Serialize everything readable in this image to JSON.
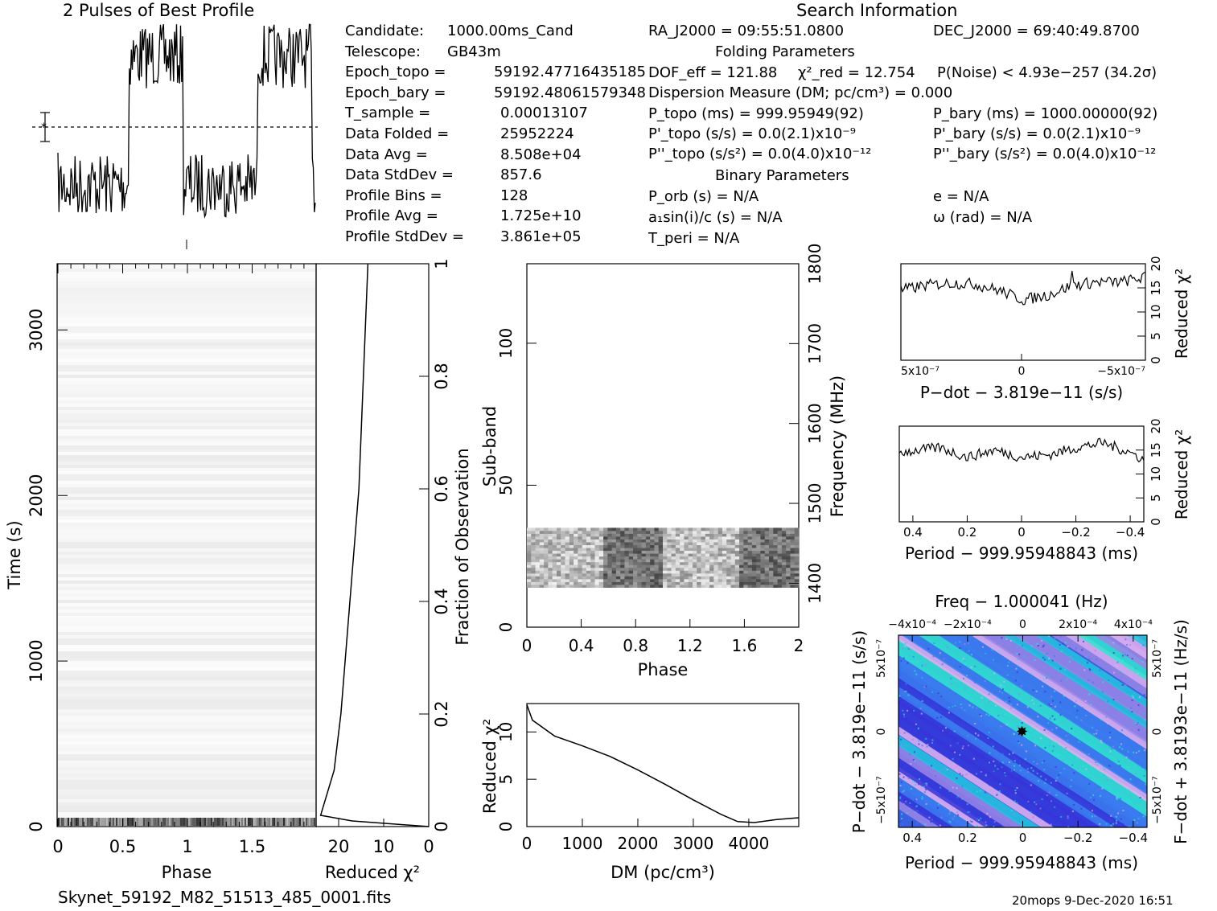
{
  "header": {
    "profile_title": "2 Pulses of Best Profile",
    "search_title": "Search Information",
    "folding_title": "Folding Parameters",
    "binary_title": "Binary Parameters"
  },
  "candidate_info": [
    {
      "label": "Candidate:",
      "value": "1000.00ms_Cand"
    },
    {
      "label": "Telescope:",
      "value": "GB43m"
    },
    {
      "label": "Epoch_topo =",
      "value": "59192.47716435185"
    },
    {
      "label": "Epoch_bary =",
      "value": "59192.48061579348"
    },
    {
      "label": "T_sample =",
      "value": "0.00013107"
    },
    {
      "label": "Data Folded =",
      "value": "25952224"
    },
    {
      "label": "Data Avg =",
      "value": "8.508e+04"
    },
    {
      "label": "Data StdDev =",
      "value": "857.6"
    },
    {
      "label": "Profile Bins =",
      "value": "128"
    },
    {
      "label": "Profile Avg =",
      "value": "1.725e+10"
    },
    {
      "label": "Profile StdDev =",
      "value": "3.861e+05"
    }
  ],
  "search_info": {
    "ra": "RA_J2000 = 09:55:51.0800",
    "dec": "DEC_J2000 = 69:40:49.8700",
    "dof": "DOF_eff = 121.88",
    "chi2": "χ²_red = 12.754",
    "pnoise": "P(Noise) < 4.93e−257   (34.2σ)",
    "dm": "Dispersion Measure (DM; pc/cm³) = 0.000",
    "ptopo": "P_topo (ms) =  999.95949(92)",
    "pbary": "P_bary (ms) =  1000.00000(92)",
    "pdtopo": "P'_topo (s/s) = 0.0(2.1)x10⁻⁹",
    "pdbary": "P'_bary (s/s) = 0.0(2.1)x10⁻⁹",
    "pddtopo": "P''_topo (s/s²) = 0.0(4.0)x10⁻¹²",
    "pddbary": "P''_bary (s/s²) = 0.0(4.0)x10⁻¹²",
    "porb": "P_orb (s) = N/A",
    "e": "e = N/A",
    "a1": "a₁sin(i)/c (s) = N/A",
    "omega": "ω (rad) = N/A",
    "tperi": "T_peri = N/A"
  },
  "footer": {
    "filename": "Skynet_59192_M82_51513_485_0001.fits",
    "stamp": "20mops  9-Dec-2020 16:51"
  },
  "chart_data": [
    {
      "id": "profile",
      "type": "line",
      "title": "2 Pulses of Best Profile",
      "x_range": [
        0,
        2
      ],
      "notes": "high from phase ~0.55-0.97 and ~1.55-1.97, low elsewhere",
      "levels": {
        "low": 0.28,
        "high": 0.78
      }
    },
    {
      "id": "time_phase",
      "type": "heatmap",
      "xlabel": "Phase",
      "ylabel": "Time (s)",
      "xlim": [
        0,
        2
      ],
      "ylim": [
        0,
        3400
      ],
      "xticks": [
        "0",
        "0.5",
        "1",
        "1.5"
      ],
      "yticks": [
        "0",
        "1000",
        "2000",
        "3000"
      ]
    },
    {
      "id": "time_chi2",
      "type": "line",
      "xlabel": "Reduced χ²",
      "ylabel": "Fraction of Observation",
      "xlim": [
        25,
        0
      ],
      "ylim": [
        0,
        1
      ],
      "xticks": [
        "20",
        "10",
        "0"
      ],
      "yticks": [
        "0",
        "0.2",
        "0.4",
        "0.6",
        "0.8",
        "1"
      ],
      "points": [
        [
          0,
          0
        ],
        [
          17,
          0.01
        ],
        [
          24,
          0.02
        ],
        [
          21,
          0.1
        ],
        [
          19.5,
          0.2
        ],
        [
          18.5,
          0.3
        ],
        [
          17.5,
          0.4
        ],
        [
          16.5,
          0.5
        ],
        [
          15.5,
          0.6
        ],
        [
          15,
          0.7
        ],
        [
          14.5,
          0.8
        ],
        [
          14,
          0.9
        ],
        [
          13.5,
          1.0
        ]
      ]
    },
    {
      "id": "subband",
      "type": "heatmap",
      "xlabel": "Phase",
      "ylabel": "Sub-band",
      "y2label": "Frequency (MHz)",
      "xlim": [
        0,
        2
      ],
      "ylim": [
        0,
        128
      ],
      "y2lim": [
        1345,
        1800
      ],
      "xticks": [
        "0",
        "0.4",
        "0.8",
        "1.2",
        "1.6",
        "2"
      ],
      "yticks": [
        "0",
        "50",
        "100"
      ],
      "y2ticks": [
        "1400",
        "1500",
        "1600",
        "1700",
        "1800"
      ],
      "active_subbands": [
        14,
        35
      ]
    },
    {
      "id": "dm_chi2",
      "type": "line",
      "xlabel": "DM (pc/cm³)",
      "ylabel": "Reduced χ²",
      "xlim": [
        0,
        4900
      ],
      "ylim": [
        0,
        13
      ],
      "xticks": [
        "0",
        "1000",
        "2000",
        "3000",
        "4000"
      ],
      "yticks": [
        "0",
        "5",
        "10"
      ],
      "points": [
        [
          0,
          12.8
        ],
        [
          100,
          11.2
        ],
        [
          500,
          9.6
        ],
        [
          1000,
          8.5
        ],
        [
          1500,
          7.4
        ],
        [
          2000,
          6.0
        ],
        [
          2500,
          4.5
        ],
        [
          3000,
          2.8
        ],
        [
          3500,
          1.3
        ],
        [
          3800,
          0.5
        ],
        [
          4100,
          0.4
        ],
        [
          4500,
          0.7
        ],
        [
          4900,
          0.9
        ]
      ]
    },
    {
      "id": "pdot_chi2",
      "type": "line",
      "xlabel": "P−dot − 3.819e−11 (s/s)",
      "ylabel": "Reduced χ²",
      "ylim": [
        0,
        20
      ],
      "xticks": [
        "5x10⁻⁷",
        "0",
        "−5x10⁻⁷"
      ],
      "yticks": [
        "0",
        "5",
        "10",
        "15",
        "20"
      ],
      "points": [
        [
          -1,
          14.5
        ],
        [
          -0.8,
          15.5
        ],
        [
          -0.6,
          16
        ],
        [
          -0.4,
          15.8
        ],
        [
          -0.2,
          14.5
        ],
        [
          0,
          12.5
        ],
        [
          0.2,
          13.5
        ],
        [
          0.4,
          15.5
        ],
        [
          0.6,
          16.2
        ],
        [
          0.8,
          16.2
        ],
        [
          1,
          17.2
        ]
      ],
      "peak_value": 18.5
    },
    {
      "id": "period_chi2",
      "type": "line",
      "xlabel": "Period − 999.95948843 (ms)",
      "ylabel": "Reduced χ²",
      "xlim": [
        0.45,
        -0.45
      ],
      "ylim": [
        0,
        20
      ],
      "xticks": [
        "0.4",
        "0.2",
        "0",
        "−0.2",
        "−0.4"
      ],
      "yticks": [
        "0",
        "5",
        "10",
        "15",
        "20"
      ],
      "points": [
        [
          0.45,
          14.5
        ],
        [
          0.3,
          15.5
        ],
        [
          0.2,
          13.5
        ],
        [
          0.1,
          15
        ],
        [
          0,
          13.5
        ],
        [
          -0.1,
          14
        ],
        [
          -0.2,
          15.5
        ],
        [
          -0.3,
          16.5
        ],
        [
          -0.4,
          14.5
        ],
        [
          -0.45,
          13
        ]
      ]
    },
    {
      "id": "p_pdot",
      "type": "heatmap",
      "title": "Freq − 1.000041 (Hz)",
      "xlabel": "Period − 999.95948843 (ms)",
      "ylabel": "P−dot − 3.819e−11 (s/s)",
      "y2label": "F−dot + 3.8193e−11 (Hz/s)",
      "xlim": [
        0.45,
        -0.45
      ],
      "xticks": [
        "0.4",
        "0.2",
        "0",
        "−0.2",
        "−0.4"
      ],
      "x2ticks": [
        "−4x10⁻⁴",
        "−2x10⁻⁴",
        "0",
        "2x10⁻⁴",
        "4x10⁻⁴"
      ],
      "yticks": [
        "5x10⁻⁷",
        "0",
        "−5x10⁻⁷"
      ],
      "y2ticks": [
        "5x10⁻⁷",
        "0",
        "−5x10⁻⁷"
      ],
      "colors": [
        "#3535d8",
        "#3b7cf0",
        "#23c4dd",
        "#2fe6cf",
        "#9a86e6",
        "#e3b0f0"
      ]
    }
  ]
}
